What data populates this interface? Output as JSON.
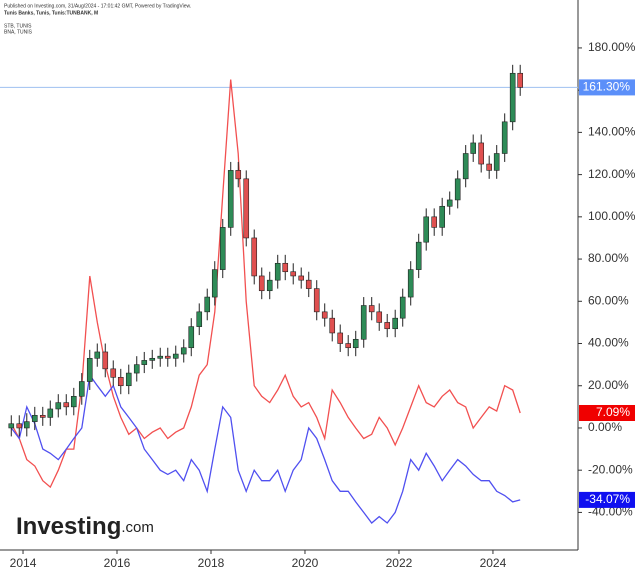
{
  "chart_data": {
    "type": "candlestick",
    "subtitle": "Published on Investing.com, 31/Aug/2024 - 17:01:42 GMT, Powered by TradingView.",
    "title": "Tunis Banks, Tunis, Tunis:TUNBANK, M",
    "brand": "Investing",
    "brand_suffix": ".com",
    "x": [
      2013.75,
      2013.92,
      2014.08,
      2014.25,
      2014.42,
      2014.58,
      2014.75,
      2014.92,
      2015.08,
      2015.25,
      2015.42,
      2015.58,
      2015.75,
      2015.92,
      2016.08,
      2016.25,
      2016.42,
      2016.58,
      2016.75,
      2016.92,
      2017.08,
      2017.25,
      2017.42,
      2017.58,
      2017.75,
      2017.92,
      2018.08,
      2018.25,
      2018.42,
      2018.58,
      2018.75,
      2018.92,
      2019.08,
      2019.25,
      2019.42,
      2019.58,
      2019.75,
      2019.92,
      2020.08,
      2020.25,
      2020.42,
      2020.58,
      2020.75,
      2020.92,
      2021.08,
      2021.25,
      2021.42,
      2021.58,
      2021.75,
      2021.92,
      2022.08,
      2022.25,
      2022.42,
      2022.58,
      2022.75,
      2022.92,
      2023.08,
      2023.25,
      2023.42,
      2023.58,
      2023.75,
      2023.92,
      2024.08,
      2024.25,
      2024.42,
      2024.58
    ],
    "xlim": [
      2013.51,
      2025.81
    ],
    "xticks": [
      2014,
      2016,
      2018,
      2020,
      2022,
      2024
    ],
    "ylim": [
      -57.8,
      202.7
    ],
    "yticks": [
      {
        "value": -40,
        "label": "-40.00%"
      },
      {
        "value": -20,
        "label": "-20.00%"
      },
      {
        "value": 0,
        "label": "0.00%"
      },
      {
        "value": 20,
        "label": "20.00%"
      },
      {
        "value": 40,
        "label": "40.00%"
      },
      {
        "value": 60,
        "label": "60.00%"
      },
      {
        "value": 80,
        "label": "80.00%"
      },
      {
        "value": 100,
        "label": "100.00%"
      },
      {
        "value": 120,
        "label": "120.00%"
      },
      {
        "value": 140,
        "label": "140.00%"
      },
      {
        "value": 160,
        "label": "160.00%"
      },
      {
        "value": 180,
        "label": "180.00%"
      }
    ],
    "candles": {
      "up_color": "#2e8b57",
      "down_color": "#e05050",
      "open": [
        0,
        2,
        0,
        3,
        6,
        5,
        9,
        12,
        10,
        15,
        22,
        33,
        36,
        28,
        24,
        20,
        26,
        30,
        32,
        33,
        34,
        33,
        35,
        38,
        48,
        55,
        62,
        75,
        95,
        122,
        118,
        90,
        72,
        65,
        70,
        78,
        74,
        72,
        70,
        66,
        55,
        52,
        45,
        40,
        38,
        42,
        58,
        55,
        50,
        47,
        52,
        62,
        75,
        88,
        100,
        95,
        105,
        108,
        118,
        130,
        135,
        125,
        122,
        130,
        145,
        168
      ],
      "high": [
        6,
        6,
        7,
        10,
        10,
        13,
        16,
        16,
        19,
        26,
        37,
        40,
        40,
        32,
        28,
        30,
        34,
        36,
        37,
        38,
        38,
        39,
        42,
        52,
        59,
        66,
        79,
        99,
        126,
        126,
        122,
        94,
        76,
        74,
        82,
        82,
        78,
        76,
        74,
        70,
        59,
        56,
        49,
        44,
        46,
        62,
        62,
        59,
        54,
        56,
        66,
        79,
        92,
        104,
        104,
        109,
        112,
        122,
        134,
        139,
        139,
        129,
        134,
        149,
        172,
        172
      ],
      "low": [
        -4,
        -4,
        -4,
        -1,
        1,
        1,
        5,
        6,
        6,
        11,
        18,
        29,
        24,
        20,
        16,
        16,
        22,
        26,
        28,
        29,
        29,
        29,
        31,
        34,
        44,
        51,
        58,
        71,
        91,
        114,
        86,
        68,
        61,
        61,
        66,
        70,
        68,
        66,
        62,
        51,
        48,
        41,
        36,
        34,
        34,
        38,
        51,
        46,
        43,
        43,
        48,
        58,
        71,
        84,
        91,
        91,
        101,
        104,
        114,
        126,
        121,
        118,
        118,
        126,
        141,
        157.3
      ],
      "close": [
        2,
        0,
        3,
        6,
        5,
        9,
        12,
        10,
        15,
        22,
        33,
        36,
        28,
        24,
        20,
        26,
        30,
        32,
        33,
        34,
        33,
        35,
        38,
        48,
        55,
        62,
        75,
        95,
        122,
        118,
        90,
        72,
        65,
        70,
        78,
        74,
        72,
        70,
        66,
        55,
        52,
        45,
        40,
        38,
        42,
        58,
        55,
        50,
        47,
        52,
        62,
        75,
        88,
        100,
        95,
        105,
        108,
        118,
        130,
        135,
        125,
        122,
        130,
        145,
        168,
        161.3
      ]
    },
    "series": [
      {
        "name": "STB, TUNIS",
        "color": "#f25050",
        "values": [
          2,
          -5,
          -15,
          -18,
          -25,
          -28,
          -20,
          -10,
          -10,
          20,
          72,
          50,
          30,
          15,
          5,
          -3,
          0,
          -5,
          -2,
          0,
          -5,
          -2,
          0,
          10,
          25,
          30,
          55,
          110,
          165,
          130,
          60,
          20,
          15,
          12,
          18,
          25,
          15,
          10,
          12,
          5,
          -5,
          18,
          12,
          5,
          0,
          -5,
          -3,
          5,
          0,
          -8,
          0,
          10,
          20,
          12,
          10,
          15,
          18,
          12,
          10,
          0,
          5,
          10,
          8,
          20,
          18,
          7.09
        ]
      },
      {
        "name": "BNA, TUNIS",
        "color": "#5050f0",
        "values": [
          0,
          -5,
          10,
          2,
          -10,
          -12,
          -15,
          -10,
          -5,
          0,
          25,
          20,
          15,
          20,
          10,
          5,
          0,
          -10,
          -15,
          -20,
          -22,
          -20,
          -25,
          -15,
          -20,
          -30,
          -10,
          10,
          5,
          -20,
          -30,
          -20,
          -25,
          -25,
          -20,
          -30,
          -20,
          -15,
          0,
          -5,
          -15,
          -25,
          -30,
          -30,
          -35,
          -40,
          -45,
          -42,
          -45,
          -40,
          -30,
          -15,
          -20,
          -12,
          -18,
          -25,
          -20,
          -15,
          -18,
          -22,
          -25,
          -25,
          -30,
          -32,
          -35,
          -34.07
        ]
      }
    ],
    "price_labels": [
      {
        "value": 161.3,
        "label": "161.30%",
        "color": "#5b8ff9"
      },
      {
        "value": 7.09,
        "label": "7.09%",
        "color": "#f00000"
      },
      {
        "value": -34.07,
        "label": "-34.07%",
        "color": "#1010f0"
      }
    ]
  }
}
